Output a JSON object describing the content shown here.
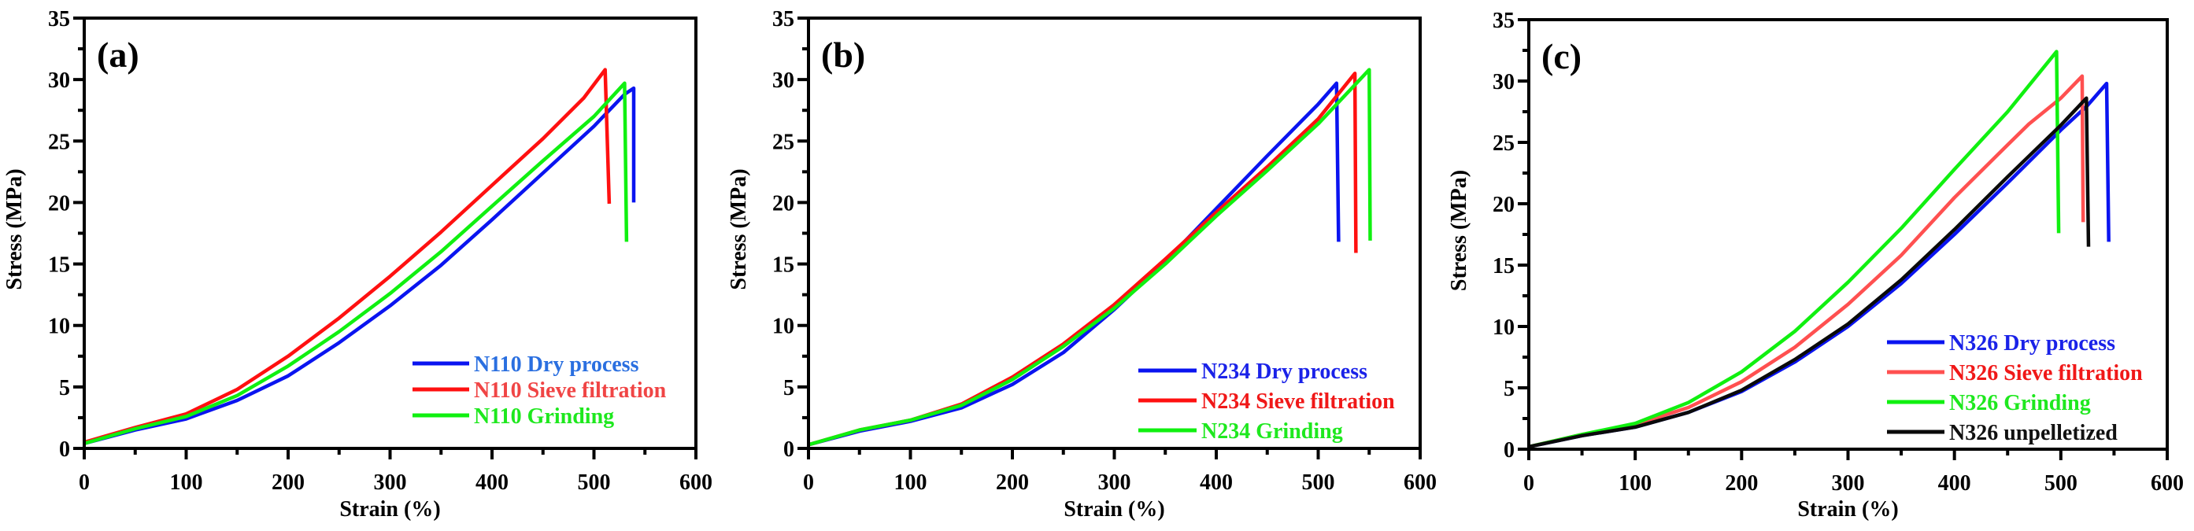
{
  "chart_data": [
    {
      "type": "line",
      "panel_label": "(a)",
      "xlabel": "Strain (%)",
      "ylabel": "Stress (MPa)",
      "xlim": [
        0,
        600
      ],
      "ylim": [
        0,
        35
      ],
      "x_ticks": [
        0,
        100,
        200,
        300,
        400,
        500,
        600
      ],
      "y_ticks": [
        0,
        5,
        10,
        15,
        20,
        25,
        30,
        35
      ],
      "x_tick_labels": [
        "0",
        "100",
        "200",
        "300",
        "400",
        "500",
        "600"
      ],
      "y_tick_labels": [
        "0",
        "5",
        "10",
        "15",
        "20",
        "25",
        "30",
        "35"
      ],
      "grid": false,
      "legend_position": "bottom-right",
      "series": [
        {
          "name": "N110 Dry process",
          "color": "#0a14f0",
          "text_color": "#2a6fe0",
          "x": [
            0,
            50,
            100,
            150,
            200,
            250,
            300,
            350,
            400,
            450,
            500,
            530,
            539,
            539
          ],
          "y": [
            0.4,
            1.5,
            2.4,
            3.9,
            5.9,
            8.6,
            11.6,
            14.9,
            18.6,
            22.4,
            26.2,
            28.8,
            29.3,
            20.0
          ]
        },
        {
          "name": "N110 Sieve filtration",
          "color": "#ff1010",
          "text_color": "#f04545",
          "x": [
            0,
            50,
            100,
            150,
            200,
            250,
            300,
            350,
            400,
            450,
            490,
            511,
            515
          ],
          "y": [
            0.5,
            1.7,
            2.8,
            4.8,
            7.5,
            10.6,
            14.0,
            17.6,
            21.4,
            25.2,
            28.5,
            30.8,
            19.9
          ]
        },
        {
          "name": "N110 Grinding",
          "color": "#10f010",
          "text_color": "#1ee81e",
          "x": [
            0,
            50,
            100,
            150,
            200,
            250,
            300,
            350,
            400,
            450,
            500,
            530,
            532
          ],
          "y": [
            0.4,
            1.6,
            2.6,
            4.3,
            6.7,
            9.5,
            12.6,
            16.0,
            19.7,
            23.4,
            27.0,
            29.7,
            16.8
          ]
        }
      ]
    },
    {
      "type": "line",
      "panel_label": "(b)",
      "xlabel": "Strain (%)",
      "ylabel": "Stress (MPa)",
      "xlim": [
        0,
        600
      ],
      "ylim": [
        0,
        35
      ],
      "x_ticks": [
        0,
        100,
        200,
        300,
        400,
        500,
        600
      ],
      "y_ticks": [
        0,
        5,
        10,
        15,
        20,
        25,
        30,
        35
      ],
      "x_tick_labels": [
        "0",
        "100",
        "200",
        "300",
        "400",
        "500",
        "600"
      ],
      "y_tick_labels": [
        "0",
        "5",
        "10",
        "15",
        "20",
        "25",
        "30",
        "35"
      ],
      "grid": false,
      "legend_position": "bottom-right",
      "series": [
        {
          "name": "N234 Dry process",
          "color": "#0a14f0",
          "text_color": "#1a22e8",
          "x": [
            0,
            50,
            100,
            150,
            200,
            250,
            300,
            350,
            400,
            450,
            500,
            518,
            520
          ],
          "y": [
            0.3,
            1.4,
            2.2,
            3.3,
            5.2,
            7.8,
            11.3,
            15.2,
            19.5,
            23.8,
            28.0,
            29.7,
            16.8
          ]
        },
        {
          "name": "N234 Sieve filtration",
          "color": "#ff1010",
          "text_color": "#f01818",
          "x": [
            0,
            50,
            100,
            150,
            200,
            250,
            300,
            350,
            400,
            450,
            500,
            536,
            537
          ],
          "y": [
            0.3,
            1.5,
            2.3,
            3.6,
            5.8,
            8.5,
            11.7,
            15.4,
            19.2,
            22.9,
            26.8,
            30.5,
            15.9
          ]
        },
        {
          "name": "N234 Grinding",
          "color": "#10f010",
          "text_color": "#1ee81e",
          "x": [
            0,
            50,
            100,
            150,
            200,
            250,
            300,
            350,
            400,
            450,
            500,
            550,
            551
          ],
          "y": [
            0.3,
            1.5,
            2.3,
            3.5,
            5.6,
            8.3,
            11.4,
            15.0,
            18.9,
            22.6,
            26.4,
            30.8,
            16.9
          ]
        }
      ]
    },
    {
      "type": "line",
      "panel_label": "(c)",
      "xlabel": "Strain (%)",
      "ylabel": "Stress (MPa)",
      "xlim": [
        0,
        600
      ],
      "ylim": [
        0,
        35
      ],
      "x_ticks": [
        0,
        100,
        200,
        300,
        400,
        500,
        600
      ],
      "y_ticks": [
        0,
        5,
        10,
        15,
        20,
        25,
        30,
        35
      ],
      "x_tick_labels": [
        "0",
        "100",
        "200",
        "300",
        "400",
        "500",
        "600"
      ],
      "y_tick_labels": [
        "0",
        "5",
        "10",
        "15",
        "20",
        "25",
        "30",
        "35"
      ],
      "grid": false,
      "legend_position": "bottom-right",
      "series": [
        {
          "name": "N326 Dry process",
          "color": "#0a14f0",
          "text_color": "#1a22e8",
          "x": [
            0,
            50,
            100,
            150,
            200,
            250,
            300,
            350,
            400,
            450,
            500,
            525,
            543,
            545
          ],
          "y": [
            0.2,
            1.1,
            1.8,
            3.0,
            4.7,
            7.1,
            10.0,
            13.5,
            17.5,
            21.7,
            26.0,
            28.0,
            29.8,
            16.9
          ]
        },
        {
          "name": "N326 Sieve filtration",
          "color": "#ff5050",
          "text_color": "#f01818",
          "x": [
            0,
            50,
            100,
            150,
            200,
            250,
            300,
            350,
            400,
            450,
            470,
            500,
            520,
            521
          ],
          "y": [
            0.2,
            1.2,
            2.0,
            3.4,
            5.5,
            8.3,
            11.8,
            15.8,
            20.5,
            24.8,
            26.5,
            28.6,
            30.4,
            18.5
          ]
        },
        {
          "name": "N326 Grinding",
          "color": "#10f010",
          "text_color": "#1ee81e",
          "x": [
            0,
            50,
            100,
            150,
            200,
            250,
            300,
            350,
            400,
            450,
            496,
            498
          ],
          "y": [
            0.2,
            1.2,
            2.1,
            3.8,
            6.3,
            9.6,
            13.6,
            18.0,
            22.8,
            27.5,
            32.4,
            17.6
          ]
        },
        {
          "name": "N326 unpelletized",
          "color": "#0a0a0a",
          "text_color": "#111111",
          "x": [
            0,
            50,
            100,
            150,
            200,
            250,
            300,
            350,
            400,
            450,
            500,
            524,
            526
          ],
          "y": [
            0.2,
            1.1,
            1.8,
            3.0,
            4.8,
            7.3,
            10.2,
            13.8,
            17.9,
            22.2,
            26.4,
            28.6,
            16.5
          ]
        }
      ]
    }
  ]
}
